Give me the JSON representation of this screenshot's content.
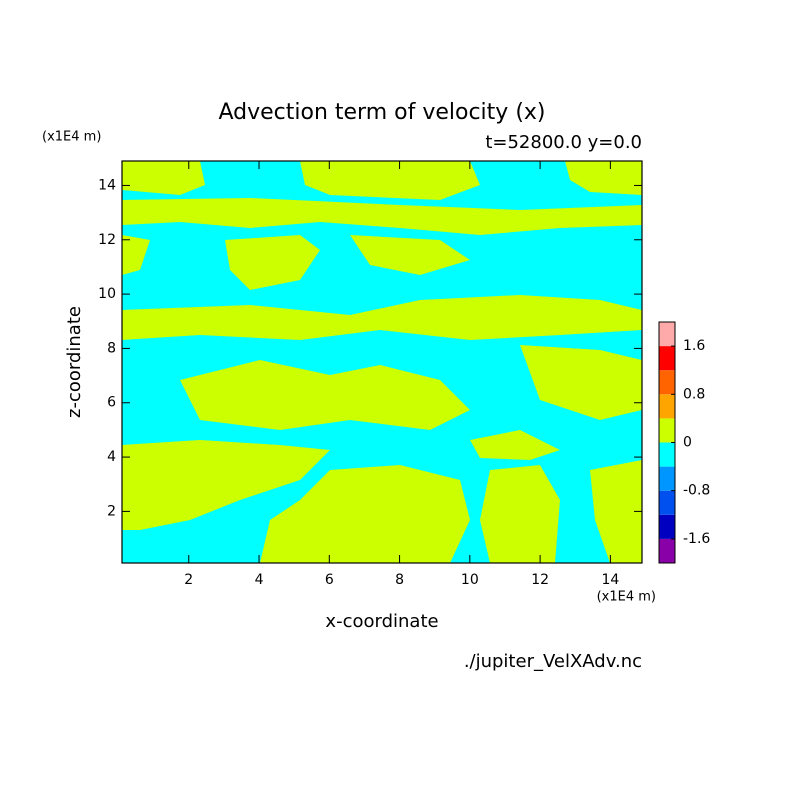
{
  "chart_data": {
    "type": "contour",
    "title": "Advection term of velocity (x)",
    "subtitle": "t=52800.0 y=0.0",
    "xlabel": "x-coordinate",
    "ylabel": "z-coordinate",
    "x_unit": "(x1E4 m)",
    "y_unit": "(x1E4 m)",
    "source": "./jupiter_VelXAdv.nc",
    "xlim": [
      0.1,
      14.9
    ],
    "ylim": [
      0.1,
      14.9
    ],
    "xticks": [
      2,
      4,
      6,
      8,
      10,
      12,
      14
    ],
    "yticks": [
      2,
      4,
      6,
      8,
      10,
      12,
      14
    ],
    "levels": [
      -2.0,
      -1.6,
      -1.2,
      -0.8,
      -0.4,
      0,
      0.4,
      0.8,
      1.2,
      1.6,
      2.0
    ],
    "colors": [
      "#8a00a8",
      "#0000c0",
      "#0050f0",
      "#0096ff",
      "#00ffff",
      "#ccff00",
      "#ffa500",
      "#ff6400",
      "#ff0000",
      "#ffaaaa"
    ],
    "colorbar_ticks": [
      -1.6,
      -0.8,
      0,
      0.8,
      1.6
    ]
  }
}
